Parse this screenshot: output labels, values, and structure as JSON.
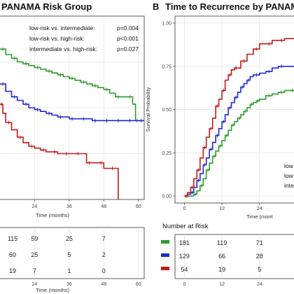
{
  "chart_data": [
    {
      "type": "line",
      "panel_label": "",
      "title": "PANAMA Risk Group",
      "xlabel": "Time (months)",
      "ylabel": "",
      "x_ticks": [
        24,
        36,
        48,
        60
      ],
      "xlim": [
        12,
        62
      ],
      "ylim": [
        0,
        1
      ],
      "grid": true,
      "annotations": [
        {
          "label": "low-risk  vs.  intermediate:",
          "p": "p=0.004"
        },
        {
          "label": "low-risk  vs.  high-risk:",
          "p": "p<0.001"
        },
        {
          "label": "intermediate vs. high-risk:",
          "p": "p=0.027"
        }
      ],
      "series": [
        {
          "color": "#2e9b2e",
          "x": [
            12,
            14,
            16,
            18,
            20,
            22,
            24,
            26,
            28,
            30,
            32,
            34,
            36,
            38,
            40,
            42,
            44,
            46,
            48,
            50,
            52,
            54,
            56,
            58,
            59,
            60,
            62
          ],
          "y": [
            0.82,
            0.79,
            0.77,
            0.75,
            0.74,
            0.73,
            0.72,
            0.71,
            0.7,
            0.69,
            0.68,
            0.67,
            0.66,
            0.65,
            0.64,
            0.63,
            0.62,
            0.61,
            0.6,
            0.58,
            0.56,
            0.56,
            0.56,
            0.52,
            0.43,
            0.43,
            0.43
          ]
        },
        {
          "color": "#1f2bd0",
          "x": [
            12,
            14,
            16,
            18,
            20,
            22,
            24,
            26,
            28,
            30,
            32,
            34,
            36,
            38,
            40,
            42,
            44,
            46,
            48,
            50,
            52,
            54,
            56,
            58,
            60,
            62
          ],
          "y": [
            0.63,
            0.59,
            0.56,
            0.54,
            0.52,
            0.5,
            0.49,
            0.48,
            0.47,
            0.46,
            0.45,
            0.45,
            0.44,
            0.44,
            0.44,
            0.44,
            0.43,
            0.43,
            0.43,
            0.43,
            0.43,
            0.43,
            0.43,
            0.43,
            0.43,
            0.43
          ]
        },
        {
          "color": "#c41a1a",
          "x": [
            12,
            13,
            14,
            16,
            18,
            20,
            22,
            24,
            26,
            28,
            30,
            32,
            34,
            36,
            38,
            40,
            42,
            44,
            46,
            48,
            50,
            52,
            53
          ],
          "y": [
            0.52,
            0.47,
            0.42,
            0.38,
            0.34,
            0.31,
            0.29,
            0.28,
            0.27,
            0.26,
            0.26,
            0.25,
            0.25,
            0.25,
            0.25,
            0.25,
            0.2,
            0.2,
            0.2,
            0.17,
            0.17,
            0.17,
            0.0
          ]
        }
      ],
      "risk_table": {
        "x": [
          24,
          36,
          48,
          60
        ],
        "xlabel": "Time (months)",
        "rows": [
          {
            "color": "#2e9b2e",
            "partial": "115",
            "values": [
              "59",
              "25",
              "7"
            ]
          },
          {
            "color": "#1f2bd0",
            "partial": "60",
            "values": [
              "25",
              "5",
              "2"
            ]
          },
          {
            "color": "#c41a1a",
            "partial": "19",
            "values": [
              "7",
              "1",
              "0"
            ]
          }
        ]
      }
    },
    {
      "type": "line",
      "panel_label": "B",
      "title": "Time to Recurrence by PANAMA",
      "xlabel": "Time (mont",
      "ylabel": "Survival Probability",
      "x_ticks": [
        0,
        12,
        24
      ],
      "y_ticks": [
        "0.00",
        "0.25",
        "0.50",
        "0.75",
        "1.00"
      ],
      "xlim": [
        -3,
        35
      ],
      "ylim": [
        0,
        1
      ],
      "grid": true,
      "annotations": [
        "low",
        "low",
        "inte"
      ],
      "series": [
        {
          "color": "#2e9b2e",
          "x": [
            0,
            2,
            3,
            4,
            5,
            6,
            7,
            8,
            9,
            10,
            11,
            12,
            13,
            14,
            15,
            16,
            17,
            18,
            19,
            20,
            21,
            22,
            23,
            24,
            26,
            28,
            30,
            32,
            34,
            35
          ],
          "y": [
            0,
            0,
            0.01,
            0.03,
            0.06,
            0.1,
            0.15,
            0.19,
            0.23,
            0.26,
            0.29,
            0.32,
            0.35,
            0.38,
            0.41,
            0.43,
            0.45,
            0.47,
            0.49,
            0.51,
            0.53,
            0.54,
            0.55,
            0.56,
            0.58,
            0.59,
            0.6,
            0.61,
            0.61,
            0.61
          ]
        },
        {
          "color": "#1f2bd0",
          "x": [
            0,
            1,
            2,
            3,
            4,
            5,
            6,
            7,
            8,
            9,
            10,
            11,
            12,
            13,
            14,
            15,
            16,
            17,
            18,
            19,
            20,
            21,
            22,
            24,
            26,
            28,
            30,
            32,
            35
          ],
          "y": [
            0,
            0.01,
            0.02,
            0.05,
            0.09,
            0.13,
            0.18,
            0.22,
            0.27,
            0.31,
            0.35,
            0.39,
            0.43,
            0.47,
            0.51,
            0.54,
            0.57,
            0.6,
            0.63,
            0.65,
            0.67,
            0.69,
            0.7,
            0.71,
            0.72,
            0.74,
            0.75,
            0.75,
            0.75
          ]
        },
        {
          "color": "#c41a1a",
          "x": [
            0,
            1,
            2,
            3,
            4,
            5,
            6,
            7,
            8,
            9,
            10,
            11,
            12,
            13,
            14,
            15,
            16,
            17,
            18,
            20,
            22,
            24,
            26,
            28,
            30,
            32,
            35
          ],
          "y": [
            0,
            0.02,
            0.05,
            0.1,
            0.15,
            0.22,
            0.28,
            0.34,
            0.39,
            0.45,
            0.52,
            0.56,
            0.61,
            0.67,
            0.7,
            0.73,
            0.74,
            0.74,
            0.78,
            0.82,
            0.85,
            0.88,
            0.88,
            0.9,
            0.9,
            0.91,
            0.91
          ]
        }
      ],
      "risk_table": {
        "title": "Number at Risk",
        "x": [
          0,
          12,
          24
        ],
        "rows": [
          {
            "color": "#2e9b2e",
            "values": [
              "181",
              "119",
              "71"
            ]
          },
          {
            "color": "#1f2bd0",
            "values": [
              "129",
              "66",
              "28"
            ]
          },
          {
            "color": "#c41a1a",
            "values": [
              "54",
              "19",
              "5"
            ]
          }
        ],
        "x_ticks": [
          "0",
          "12",
          "24"
        ]
      }
    }
  ]
}
